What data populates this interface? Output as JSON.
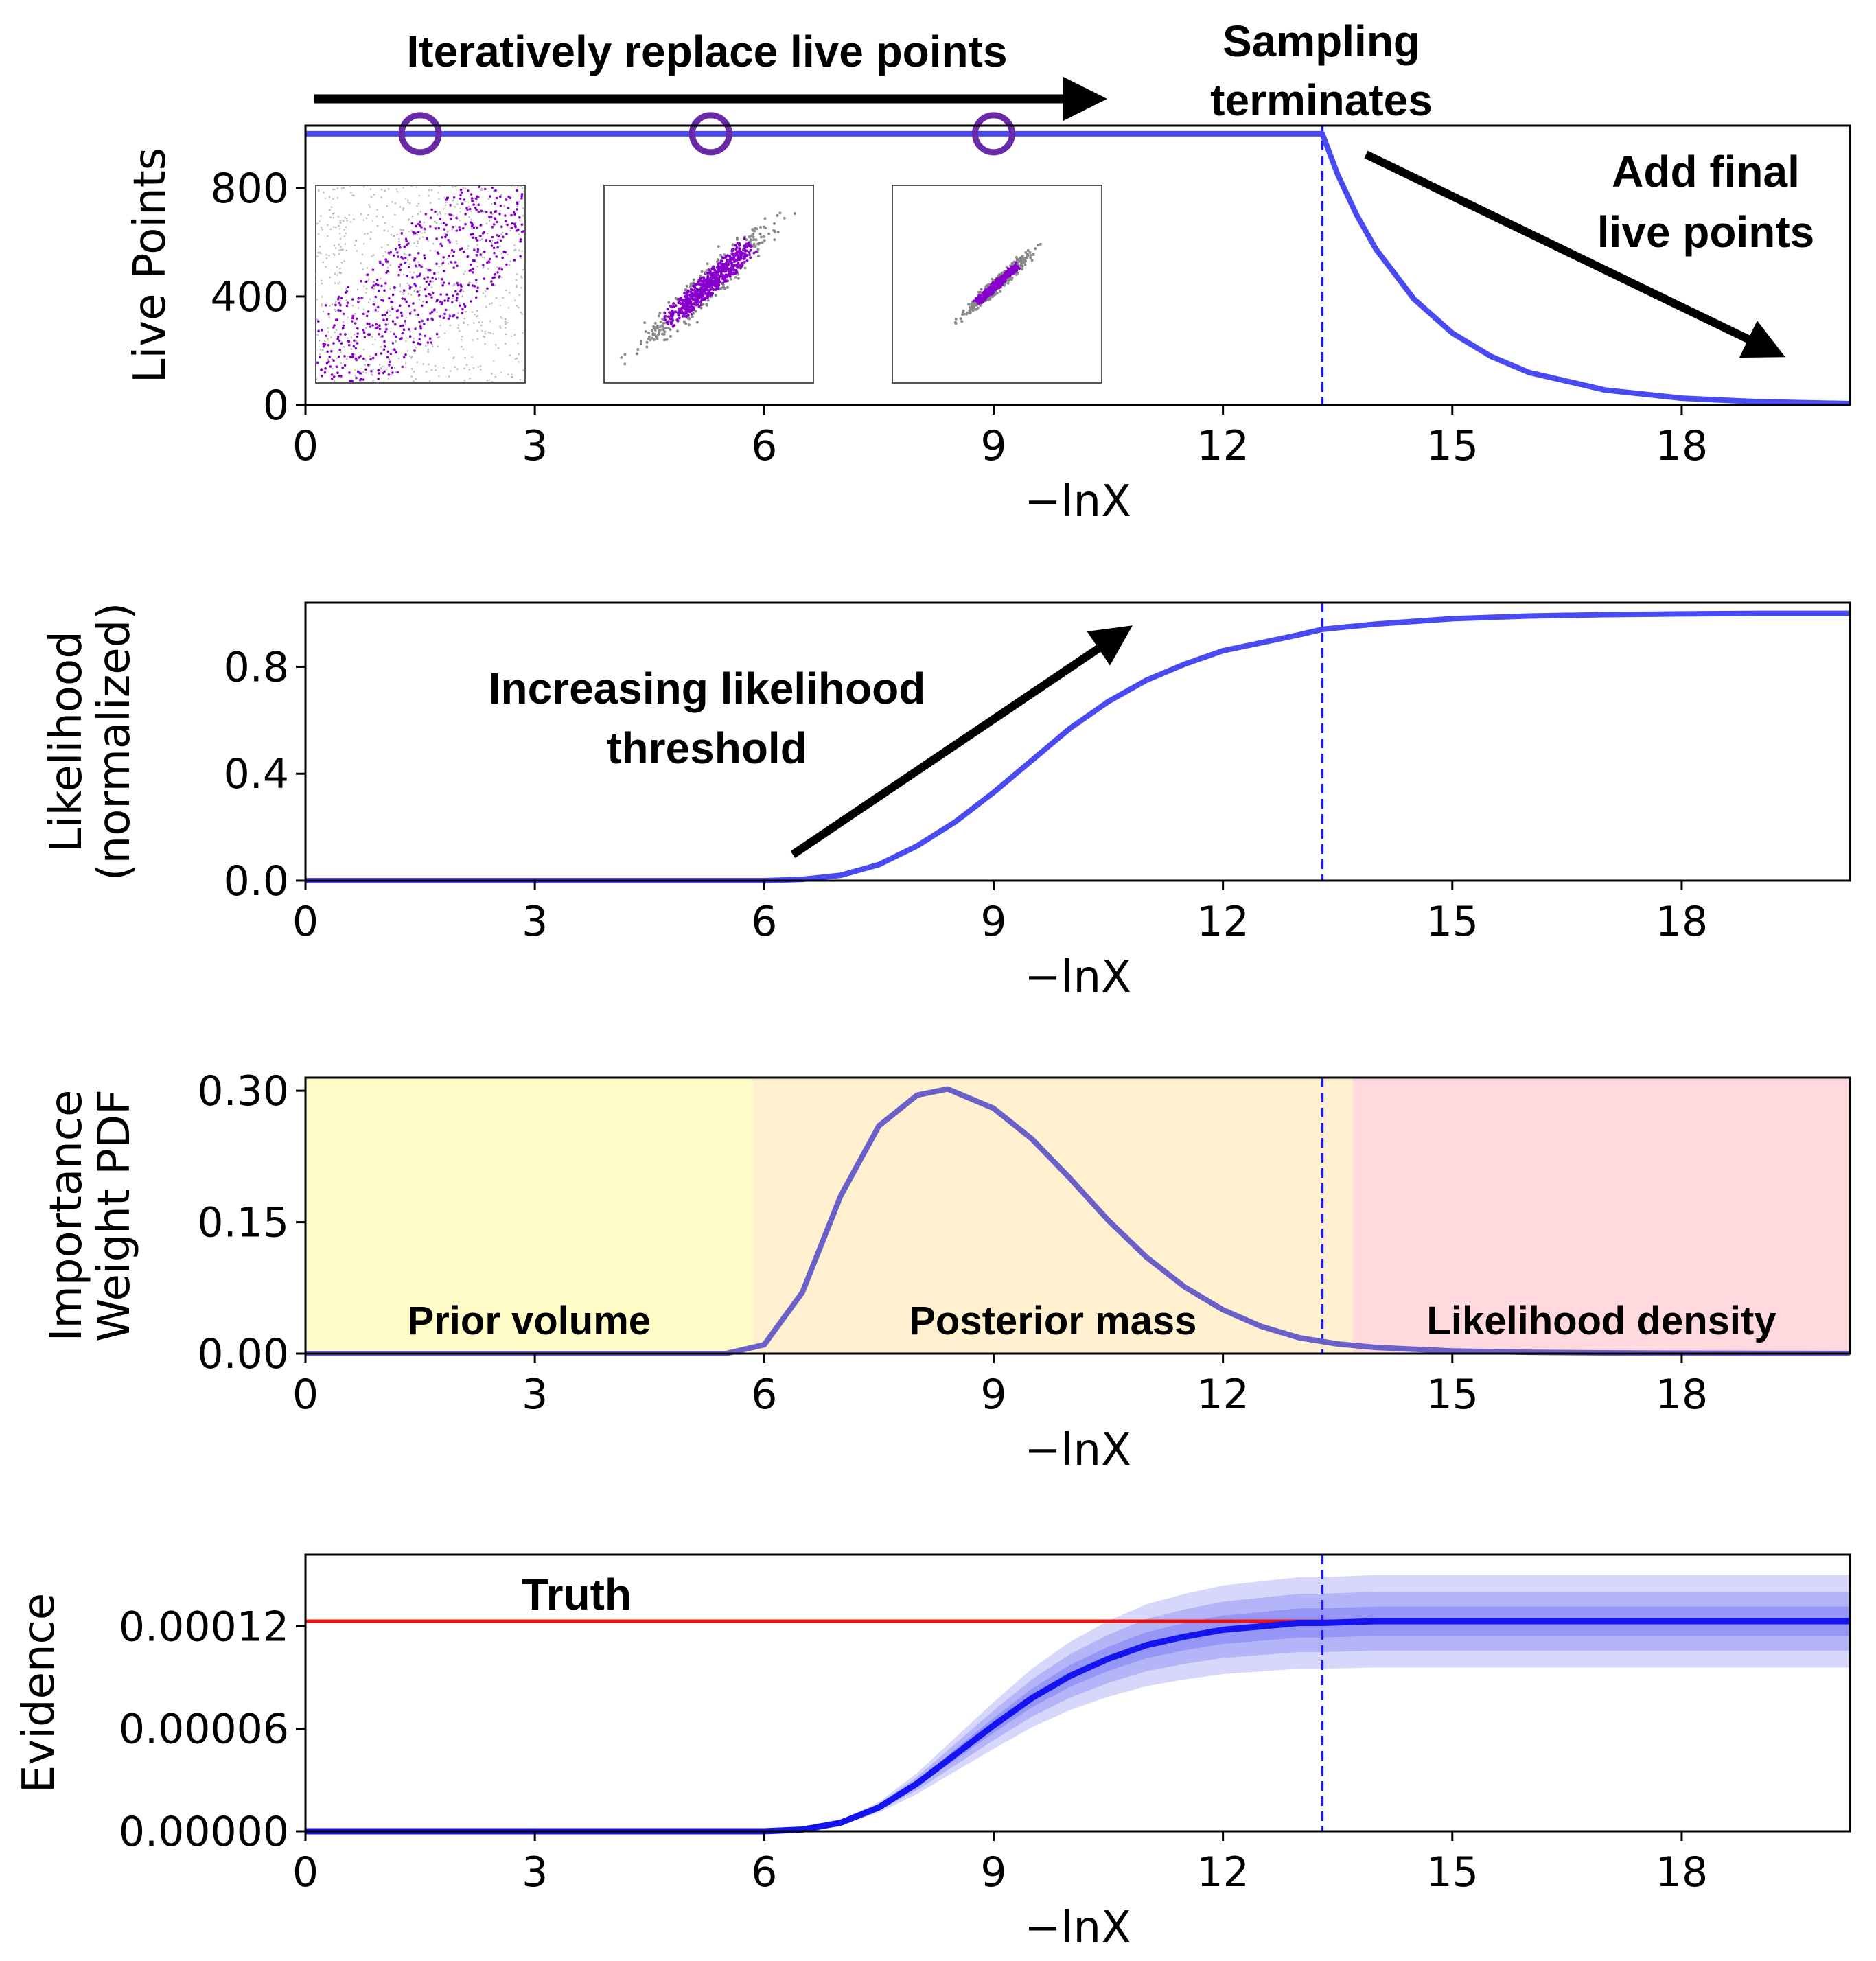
{
  "colors": {
    "curve": "#4a4af2",
    "curve_dark": "#1414f0",
    "weight_curve": "#6a60c8",
    "truth": "#f01010",
    "band": "#4848f0",
    "region_prior": "#fffcc8",
    "region_posterior": "#fff0cf",
    "region_likelihood": "#ffd9dd",
    "dots_inner": "#8800cc",
    "dots_outer": "#8a8a8a"
  },
  "annotations": {
    "iterate": "Iteratively replace live points",
    "terminate_line1": "Sampling",
    "terminate_line2": "terminates",
    "final_line1": "Add final",
    "final_line2": "live points",
    "likelihood_line1": "Increasing likelihood",
    "likelihood_line2": "threshold",
    "truth": "Truth"
  },
  "chart_data": [
    {
      "id": "live",
      "type": "line",
      "title": "",
      "xlabel": "−lnX",
      "ylabel": [
        "Live Points"
      ],
      "xlim": [
        0,
        20.2
      ],
      "ylim": [
        0,
        1030
      ],
      "xticks": [
        0,
        3,
        6,
        9,
        12,
        15,
        18
      ],
      "yticks": [
        0,
        400,
        800
      ],
      "ytick_labels": [
        "0",
        "400",
        "800"
      ],
      "termination_x": 13.3,
      "series": [
        {
          "name": "live points",
          "x": [
            0,
            13.3,
            13.5,
            13.75,
            14.0,
            14.5,
            15.0,
            15.5,
            16.0,
            17.0,
            18.0,
            19.0,
            20.2
          ],
          "values": [
            1000,
            1000,
            850,
            700,
            575,
            390,
            265,
            180,
            120,
            55,
            25,
            12,
            5
          ]
        }
      ],
      "markers": {
        "shape": "circle",
        "x": [
          1.5,
          5.3,
          9.0
        ],
        "y": [
          1000,
          1000,
          1000
        ]
      }
    },
    {
      "id": "likelihood",
      "type": "line",
      "title": "",
      "xlabel": "−lnX",
      "ylabel": [
        "Likelihood",
        "(normalized)"
      ],
      "xlim": [
        0,
        20.2
      ],
      "ylim": [
        0,
        1.04
      ],
      "xticks": [
        0,
        3,
        6,
        9,
        12,
        15,
        18
      ],
      "yticks": [
        0.0,
        0.4,
        0.8
      ],
      "ytick_labels": [
        "0.0",
        "0.4",
        "0.8"
      ],
      "termination_x": 13.3,
      "series": [
        {
          "name": "normalized likelihood",
          "x": [
            0,
            6.0,
            6.5,
            7.0,
            7.5,
            8.0,
            8.5,
            9.0,
            9.5,
            10.0,
            10.5,
            11.0,
            11.5,
            12.0,
            12.5,
            13.0,
            13.3,
            14.0,
            15.0,
            16.0,
            17.0,
            18.0,
            19.0,
            20.2
          ],
          "values": [
            0,
            0,
            0.005,
            0.02,
            0.06,
            0.13,
            0.22,
            0.33,
            0.45,
            0.57,
            0.67,
            0.75,
            0.81,
            0.86,
            0.89,
            0.92,
            0.94,
            0.96,
            0.98,
            0.99,
            0.995,
            0.998,
            1.0,
            1.0
          ]
        }
      ]
    },
    {
      "id": "weights",
      "type": "line",
      "title": "",
      "xlabel": "−lnX",
      "ylabel": [
        "Importance",
        "Weight PDF"
      ],
      "xlim": [
        0,
        20.2
      ],
      "ylim": [
        0,
        0.315
      ],
      "xticks": [
        0,
        3,
        6,
        9,
        12,
        15,
        18
      ],
      "yticks": [
        0.0,
        0.15,
        0.3
      ],
      "ytick_labels": [
        "0.00",
        "0.15",
        "0.30"
      ],
      "termination_x": 13.3,
      "regions": [
        {
          "label": "Prior volume",
          "x0": 0,
          "x1": 5.85,
          "color_key": "region_prior"
        },
        {
          "label": "Posterior mass",
          "x0": 5.85,
          "x1": 13.7,
          "color_key": "region_posterior"
        },
        {
          "label": "Likelihood density",
          "x0": 13.7,
          "x1": 20.2,
          "color_key": "region_likelihood"
        }
      ],
      "series": [
        {
          "name": "importance weight pdf",
          "x": [
            0,
            5.5,
            6.0,
            6.5,
            7.0,
            7.5,
            8.0,
            8.4,
            9.0,
            9.5,
            10.0,
            10.5,
            11.0,
            11.5,
            12.0,
            12.5,
            13.0,
            13.5,
            14.0,
            15.0,
            16.0,
            17.0,
            18.0,
            19.0,
            20.2
          ],
          "values": [
            0,
            0,
            0.01,
            0.07,
            0.18,
            0.26,
            0.295,
            0.302,
            0.28,
            0.245,
            0.2,
            0.152,
            0.11,
            0.076,
            0.05,
            0.031,
            0.018,
            0.011,
            0.007,
            0.003,
            0.0015,
            0.0008,
            0.0004,
            0.0002,
            0.0001
          ]
        }
      ]
    },
    {
      "id": "evidence",
      "type": "area",
      "title": "",
      "xlabel": "−lnX",
      "ylabel": [
        "Evidence"
      ],
      "xlim": [
        0,
        20.2
      ],
      "ylim": [
        0,
        0.000162
      ],
      "xticks": [
        0,
        3,
        6,
        9,
        12,
        15,
        18
      ],
      "yticks": [
        0,
        6e-05,
        0.00012
      ],
      "ytick_labels": [
        "0.00000",
        "0.00006",
        "0.00012"
      ],
      "termination_x": 13.3,
      "truth": 0.000123,
      "band_scales": [
        1.22,
        1.14,
        1.07
      ],
      "band_lower_scales": [
        0.78,
        0.86,
        0.93
      ],
      "band_opacity": [
        0.22,
        0.24,
        0.28
      ],
      "series": [
        {
          "name": "evidence",
          "x": [
            0,
            6.0,
            6.5,
            7.0,
            7.5,
            8.0,
            8.5,
            9.0,
            9.5,
            10.0,
            10.5,
            11.0,
            11.5,
            12.0,
            12.5,
            13.0,
            13.3,
            14.0,
            15.0,
            16.0,
            17.0,
            18.0,
            19.0,
            20.2
          ],
          "values": [
            0,
            0,
            1e-06,
            5e-06,
            1.4e-05,
            2.8e-05,
            4.5e-05,
            6.2e-05,
            7.8e-05,
            9.1e-05,
            0.000101,
            0.000109,
            0.000114,
            0.000118,
            0.00012,
            0.000122,
            0.000122,
            0.000123,
            0.000123,
            0.000123,
            0.000123,
            0.000123,
            0.000123,
            0.000123
          ]
        }
      ]
    }
  ]
}
